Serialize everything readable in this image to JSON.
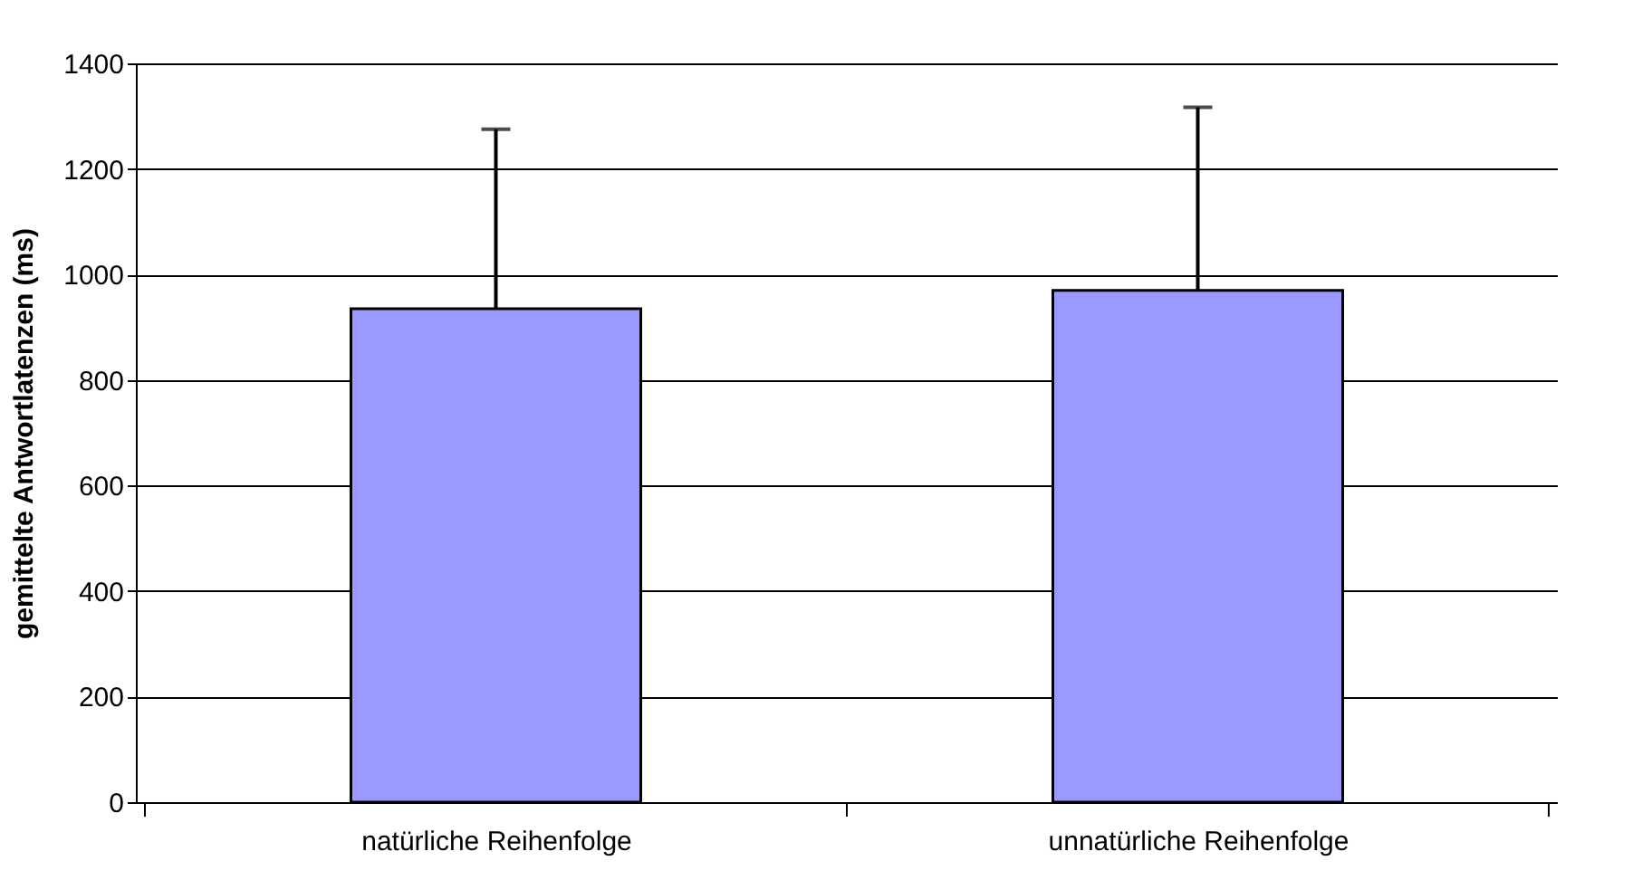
{
  "chart_data": {
    "type": "bar",
    "ylabel": "gemittelte Antwortlatenzen (ms)",
    "categories": [
      "natürliche Reihenfolge",
      "unnatürliche Reihenfolge"
    ],
    "values": [
      935,
      970
    ],
    "errors": [
      [
        935,
        1275
      ],
      [
        970,
        1317
      ]
    ],
    "color": "#9999ff",
    "ylim": [
      0,
      1400
    ],
    "yticks": [
      0,
      200,
      400,
      600,
      800,
      1000,
      1200,
      1400
    ],
    "grid": "y"
  }
}
